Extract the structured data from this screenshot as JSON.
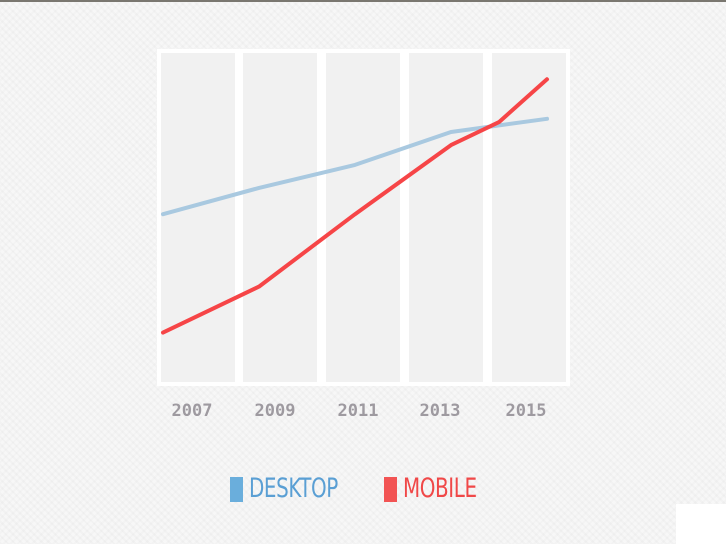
{
  "chart_data": {
    "type": "line",
    "x": [
      2007,
      2009,
      2011,
      2013,
      2014,
      2015
    ],
    "x_tick_labels": [
      "2007",
      "2009",
      "2011",
      "2013",
      "2015"
    ],
    "ylim": [
      0,
      100
    ],
    "grid": false,
    "legend_position": "bottom",
    "series": [
      {
        "name": "DESKTOP",
        "color": "#a9c9e0",
        "values": [
          51,
          59,
          66,
          76,
          78,
          80
        ]
      },
      {
        "name": "MOBILE",
        "color": "#f64547",
        "values": [
          15,
          29,
          51,
          72,
          79,
          92
        ]
      }
    ]
  },
  "legend": {
    "desktop": {
      "label": "DESKTOP",
      "swatch_color": "#6aaedc",
      "text_color": "#5a9fd4"
    },
    "mobile": {
      "label": "MOBILE",
      "swatch_color": "#f25454",
      "text_color": "#f04848"
    }
  }
}
